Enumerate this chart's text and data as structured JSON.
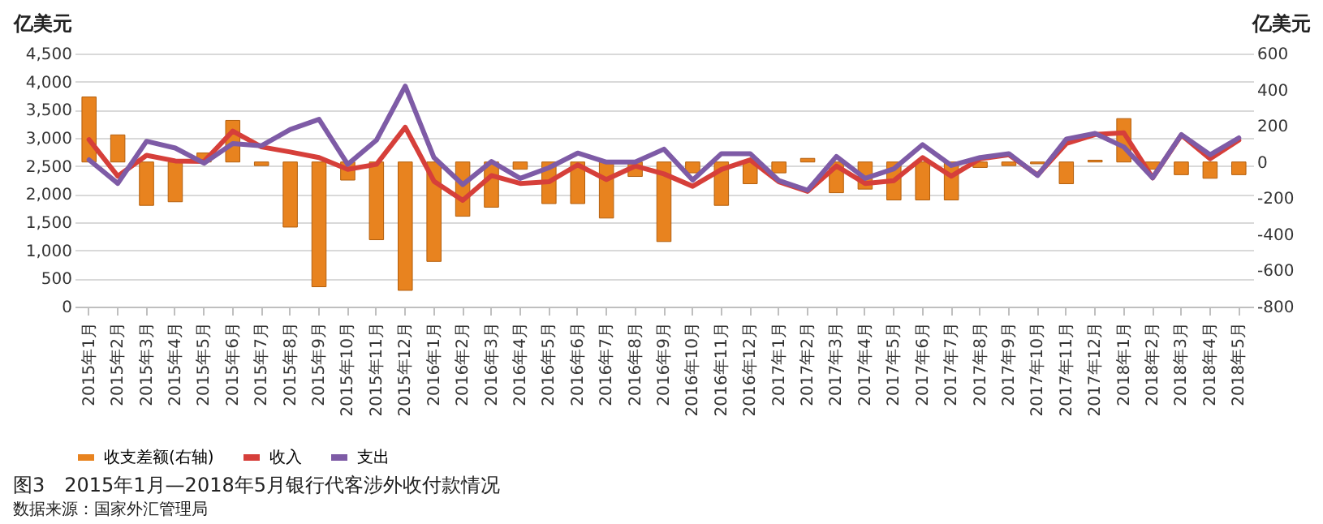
{
  "chart_data": {
    "type": "bar",
    "title": "图3　2015年1月—2018年5月银行代客涉外收付款情况",
    "annotations": [
      "数据来源：国家外汇管理局"
    ],
    "ylabel": "亿美元",
    "y2label": "亿美元",
    "categories": [
      "2015年1月",
      "2015年2月",
      "2015年3月",
      "2015年4月",
      "2015年5月",
      "2015年6月",
      "2015年7月",
      "2015年8月",
      "2015年9月",
      "2015年10月",
      "2015年11月",
      "2015年12月",
      "2016年1月",
      "2016年2月",
      "2016年3月",
      "2016年4月",
      "2016年5月",
      "2016年6月",
      "2016年7月",
      "2016年8月",
      "2016年9月",
      "2016年10月",
      "2016年11月",
      "2016年12月",
      "2017年1月",
      "2017年2月",
      "2017年3月",
      "2017年4月",
      "2017年5月",
      "2017年6月",
      "2017年7月",
      "2017年8月",
      "2017年9月",
      "2017年10月",
      "2017年11月",
      "2017年12月",
      "2018年1月",
      "2018年2月",
      "2018年3月",
      "2018年4月",
      "2018年5月"
    ],
    "series": [
      {
        "name": "收支差额(右轴)",
        "axis": "y2",
        "color": "#e8831f",
        "values": [
          360,
          150,
          -240,
          -220,
          50,
          230,
          -20,
          -360,
          -690,
          -100,
          -430,
          -710,
          -550,
          -300,
          -250,
          -40,
          -230,
          -230,
          -310,
          -80,
          -440,
          -60,
          -240,
          -120,
          -60,
          20,
          -170,
          -150,
          -210,
          -210,
          -210,
          -30,
          -20,
          -10,
          -120,
          10,
          240,
          -40,
          -70,
          -90,
          -70
        ]
      },
      {
        "name": "收入",
        "type": "line",
        "axis": "y",
        "color": "#d63f3a",
        "values": [
          2970,
          2320,
          2690,
          2590,
          2580,
          3120,
          2840,
          2750,
          2650,
          2440,
          2530,
          3190,
          2230,
          1890,
          2330,
          2190,
          2220,
          2520,
          2260,
          2500,
          2360,
          2140,
          2440,
          2610,
          2220,
          2050,
          2500,
          2190,
          2240,
          2650,
          2320,
          2630,
          2700,
          2340,
          2900,
          3060,
          3090,
          2290,
          3050,
          2630,
          2960
        ]
      },
      {
        "name": "支出",
        "type": "line",
        "axis": "y",
        "color": "#7e5ba6",
        "values": [
          2610,
          2190,
          2940,
          2820,
          2550,
          2900,
          2860,
          3150,
          3330,
          2530,
          2960,
          3920,
          2650,
          2170,
          2580,
          2280,
          2470,
          2730,
          2570,
          2570,
          2800,
          2250,
          2720,
          2720,
          2240,
          2070,
          2670,
          2280,
          2450,
          2880,
          2510,
          2650,
          2720,
          2330,
          2980,
          3080,
          2840,
          2290,
          3060,
          2700,
          3000
        ]
      }
    ],
    "ylim": [
      0,
      4500
    ],
    "yticks": [
      0,
      500,
      {
        "value": 1000,
        "label": "1,000"
      },
      {
        "value": 1500,
        "label": "1,500"
      },
      {
        "value": 2000,
        "label": "2,000"
      },
      {
        "value": 2500,
        "label": "2,500"
      },
      {
        "value": 3000,
        "label": "3,000"
      },
      {
        "value": 3500,
        "label": "3,500"
      },
      {
        "value": 4000,
        "label": "4,000"
      },
      {
        "value": 4500,
        "label": "4,500"
      }
    ],
    "y2lim": [
      -800,
      600
    ],
    "y2ticks": [
      -800,
      -600,
      -400,
      -200,
      0,
      200,
      400,
      600
    ],
    "grid": "y",
    "legend": "bottom",
    "marker": "none",
    "line_style": "solid"
  }
}
